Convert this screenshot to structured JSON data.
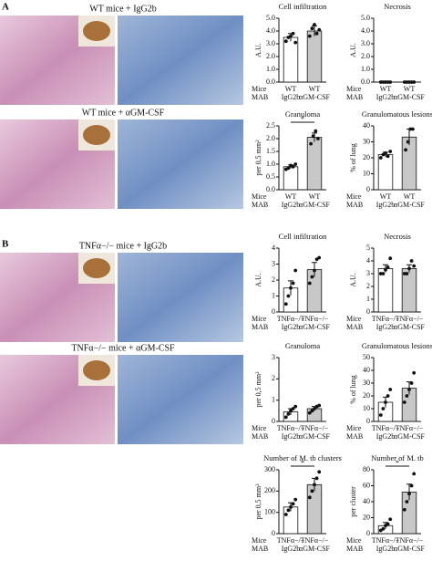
{
  "panels": [
    {
      "letter": "A",
      "rows": [
        {
          "caption": "WT mice + IgG2b"
        },
        {
          "caption": "WT mice + αGM-CSF"
        }
      ]
    },
    {
      "letter": "B",
      "rows": [
        {
          "caption": "TNFα−/− mice + IgG2b"
        },
        {
          "caption": "TNFα−/− mice + αGM-CSF"
        }
      ]
    }
  ],
  "chart_data": [
    {
      "type": "bar",
      "title": "Cell infiltration",
      "ylabel": "A.U.",
      "row_labels": [
        "Mice",
        "MAB"
      ],
      "groups": [
        "WT",
        "WT"
      ],
      "categories": [
        "IgG2b",
        "αGM-CSF"
      ],
      "colors": [
        "#ffffff",
        "#c8c8c8"
      ],
      "values": [
        3.5,
        4.0
      ],
      "errors": [
        0.3,
        0.4
      ],
      "points": [
        [
          3.2,
          3.5,
          3.6,
          3.8,
          3.1
        ],
        [
          3.6,
          4.2,
          4.5,
          3.8,
          4.1
        ]
      ],
      "ylim": [
        0,
        5
      ],
      "yticks": [
        {
          "value": 0,
          "label": "0.0"
        },
        {
          "value": 1,
          "label": "1.0"
        },
        {
          "value": 2,
          "label": "2.0"
        },
        {
          "value": 3,
          "label": "3.0"
        },
        {
          "value": 4,
          "label": "4.0"
        },
        {
          "value": 5,
          "label": "5.0"
        }
      ]
    },
    {
      "type": "bar",
      "title": "Necrosis",
      "ylabel": "A.U.",
      "row_labels": [
        "Mice",
        "MAB"
      ],
      "groups": [
        "WT",
        "WT"
      ],
      "categories": [
        "IgG2b",
        "αGM-CSF"
      ],
      "colors": [
        "#ffffff",
        "#c8c8c8"
      ],
      "values": [
        0,
        0
      ],
      "errors": [
        0,
        0
      ],
      "points": [
        [
          0,
          0,
          0,
          0,
          0
        ],
        [
          0,
          0,
          0,
          0,
          0
        ]
      ],
      "ylim": [
        0,
        5
      ],
      "yticks": [
        {
          "value": 0,
          "label": "0.0"
        },
        {
          "value": 1,
          "label": "1.0"
        },
        {
          "value": 2,
          "label": "2.0"
        },
        {
          "value": 3,
          "label": "3.0"
        },
        {
          "value": 4,
          "label": "4.0"
        },
        {
          "value": 5,
          "label": "5.0"
        }
      ]
    },
    {
      "type": "bar",
      "title": "Granuloma",
      "ylabel": "per 0,5 mm²",
      "significance": "*",
      "row_labels": [
        "Mice",
        "MAB"
      ],
      "groups": [
        "WT",
        "WT"
      ],
      "categories": [
        "IgG2b",
        "αGM-CSF"
      ],
      "colors": [
        "#ffffff",
        "#c8c8c8"
      ],
      "values": [
        0.9,
        2.05
      ],
      "errors": [
        0.07,
        0.17
      ],
      "points": [
        [
          0.8,
          0.85,
          0.95,
          0.9,
          1.0
        ],
        [
          1.8,
          2.1,
          2.3,
          2.0
        ]
      ],
      "ylim": [
        0,
        2.5
      ],
      "yticks": [
        {
          "value": 0,
          "label": "0.0"
        },
        {
          "value": 0.5,
          "label": "0.5"
        },
        {
          "value": 1,
          "label": "1.0"
        },
        {
          "value": 1.5,
          "label": "1.5"
        },
        {
          "value": 2,
          "label": "2.0"
        },
        {
          "value": 2.5,
          "label": "2.5"
        }
      ]
    },
    {
      "type": "bar",
      "title": "Granulomatous lesions",
      "ylabel": "% of lung",
      "row_labels": [
        "Mice",
        "MAB"
      ],
      "groups": [
        "WT",
        "WT"
      ],
      "categories": [
        "IgG2b",
        "αGM-CSF"
      ],
      "colors": [
        "#ffffff",
        "#c8c8c8"
      ],
      "values": [
        22,
        33
      ],
      "errors": [
        1.5,
        5
      ],
      "points": [
        [
          20,
          22,
          23,
          21,
          24
        ],
        [
          25,
          30,
          38,
          38
        ]
      ],
      "ylim": [
        0,
        40
      ],
      "yticks": [
        0,
        10,
        20,
        30,
        40
      ]
    },
    {
      "type": "bar",
      "title": "Cell infiltration",
      "ylabel": "A.U.",
      "row_labels": [
        "Mice",
        "MAB"
      ],
      "groups": [
        "TNFα−/−",
        "TNFα−/−"
      ],
      "categories": [
        "IgG2b",
        "αGM-CSF"
      ],
      "colors": [
        "#ffffff",
        "#c8c8c8"
      ],
      "values": [
        1.5,
        2.65
      ],
      "errors": [
        0.45,
        0.45
      ],
      "points": [
        [
          0.5,
          1.0,
          1.5,
          1.8,
          2.6
        ],
        [
          1.8,
          2.2,
          2.6,
          3.3,
          3.4
        ]
      ],
      "ylim": [
        0,
        4
      ],
      "yticks": [
        0,
        1,
        2,
        3,
        4
      ]
    },
    {
      "type": "bar",
      "title": "Necrosis",
      "ylabel": "A.U.",
      "row_labels": [
        "Mice",
        "MAB"
      ],
      "groups": [
        "TNFα−/−",
        "TNFα−/−"
      ],
      "categories": [
        "IgG2b",
        "αGM-CSF"
      ],
      "colors": [
        "#ffffff",
        "#c8c8c8"
      ],
      "values": [
        3.4,
        3.4
      ],
      "errors": [
        0.3,
        0.3
      ],
      "points": [
        [
          3,
          3,
          3.3,
          3.5,
          4.2
        ],
        [
          3,
          3,
          3.4,
          4,
          3.6
        ]
      ],
      "ylim": [
        0,
        5
      ],
      "yticks": [
        0,
        1,
        2,
        3,
        4,
        5
      ]
    },
    {
      "type": "bar",
      "title": "Granuloma",
      "ylabel": "per 0,5 mm²",
      "row_labels": [
        "Mice",
        "MAB"
      ],
      "groups": [
        "TNFα−/−",
        "TNFα−/−"
      ],
      "categories": [
        "IgG2b",
        "αGM-CSF"
      ],
      "colors": [
        "#ffffff",
        "#c8c8c8"
      ],
      "values": [
        0.45,
        0.6
      ],
      "errors": [
        0.15,
        0.1
      ],
      "points": [
        [
          0.2,
          0.35,
          0.5,
          0.6,
          0.7
        ],
        [
          0.4,
          0.5,
          0.6,
          0.7,
          0.75
        ]
      ],
      "ylim": [
        0,
        3
      ],
      "yticks": [
        0,
        1,
        2,
        3
      ]
    },
    {
      "type": "bar",
      "title": "Granulomatous lesions",
      "ylabel": "% of lung",
      "row_labels": [
        "Mice",
        "MAB"
      ],
      "groups": [
        "TNFα−/−",
        "TNFα−/−"
      ],
      "categories": [
        "IgG2b",
        "αGM-CSF"
      ],
      "colors": [
        "#ffffff",
        "#c8c8c8"
      ],
      "values": [
        15,
        26
      ],
      "errors": [
        4,
        5
      ],
      "points": [
        [
          5,
          10,
          15,
          20,
          25
        ],
        [
          15,
          20,
          25,
          30,
          38
        ]
      ],
      "ylim": [
        0,
        50
      ],
      "yticks": [
        0,
        10,
        20,
        30,
        40,
        50
      ]
    },
    {
      "type": "bar",
      "title": "Number of M. tb clusters",
      "ylabel": "per 0,5 mm²",
      "significance": "*",
      "row_labels": [
        "Mice",
        "MAB"
      ],
      "groups": [
        "TNFα−/−",
        "TNFα−/−"
      ],
      "categories": [
        "IgG2b",
        "αGM-CSF"
      ],
      "colors": [
        "#ffffff",
        "#c8c8c8"
      ],
      "values": [
        125,
        230
      ],
      "errors": [
        20,
        30
      ],
      "points": [
        [
          90,
          110,
          125,
          140,
          160
        ],
        [
          170,
          200,
          230,
          260,
          290
        ]
      ],
      "ylim": [
        0,
        300
      ],
      "yticks": [
        0,
        100,
        200,
        300
      ]
    },
    {
      "type": "bar",
      "title": "Number of M. tb",
      "ylabel": "per cluster",
      "significance": "*",
      "row_labels": [
        "Mice",
        "MAB"
      ],
      "groups": [
        "TNFα−/−",
        "TNFα−/−"
      ],
      "categories": [
        "IgG2b",
        "αGM-CSF"
      ],
      "colors": [
        "#ffffff",
        "#c8c8c8"
      ],
      "values": [
        10,
        52
      ],
      "errors": [
        4,
        10
      ],
      "points": [
        [
          4,
          6,
          10,
          12,
          18
        ],
        [
          30,
          40,
          50,
          60,
          75
        ]
      ],
      "ylim": [
        0,
        80
      ],
      "yticks": [
        0,
        20,
        40,
        60,
        80
      ]
    }
  ]
}
